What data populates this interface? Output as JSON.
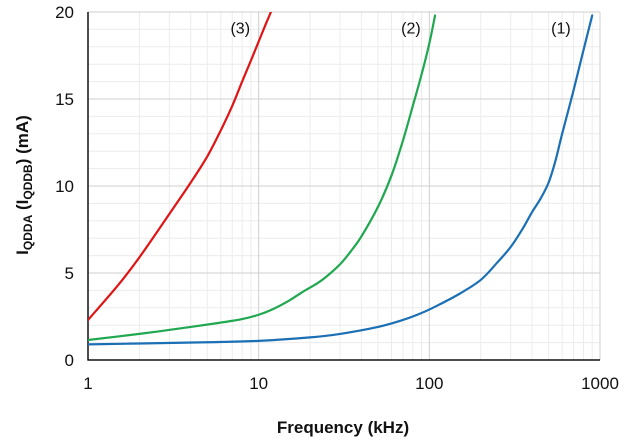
{
  "chart_data": {
    "type": "line",
    "xscale": "log",
    "xlim": [
      1,
      1000
    ],
    "ylim": [
      0,
      20
    ],
    "grid": true,
    "xlabel": "Frequency (kHz)",
    "ylabel": {
      "pre": "I",
      "sub1": "QDDA",
      "mid": " (I",
      "sub2": "QDDB",
      "post": ") (mA)"
    },
    "xticks": [
      {
        "value": 1,
        "label": "1"
      },
      {
        "value": 10,
        "label": "10"
      },
      {
        "value": 100,
        "label": "100"
      },
      {
        "value": 1000,
        "label": "1000"
      }
    ],
    "yticks": [
      {
        "value": 0,
        "label": "0"
      },
      {
        "value": 5,
        "label": "5"
      },
      {
        "value": 10,
        "label": "10"
      },
      {
        "value": 15,
        "label": "15"
      },
      {
        "value": 20,
        "label": "20"
      }
    ],
    "series": [
      {
        "label": "(1)",
        "color": "#1a6fb5",
        "label_pos": {
          "x": 590,
          "y": 18.3
        },
        "points": [
          [
            1,
            0.9
          ],
          [
            2,
            0.95
          ],
          [
            5,
            1.02
          ],
          [
            10,
            1.1
          ],
          [
            20,
            1.3
          ],
          [
            30,
            1.5
          ],
          [
            50,
            1.9
          ],
          [
            70,
            2.3
          ],
          [
            90,
            2.7
          ],
          [
            110,
            3.1
          ],
          [
            150,
            3.8
          ],
          [
            200,
            4.6
          ],
          [
            250,
            5.6
          ],
          [
            300,
            6.5
          ],
          [
            350,
            7.5
          ],
          [
            400,
            8.5
          ],
          [
            450,
            9.3
          ],
          [
            500,
            10.2
          ],
          [
            550,
            11.5
          ],
          [
            600,
            13.0
          ],
          [
            700,
            15.5
          ],
          [
            800,
            17.8
          ],
          [
            900,
            19.8
          ]
        ]
      },
      {
        "label": "(2)",
        "color": "#1fa84f",
        "label_pos": {
          "x": 78,
          "y": 18.3
        },
        "points": [
          [
            1,
            1.15
          ],
          [
            2,
            1.5
          ],
          [
            4,
            1.9
          ],
          [
            6,
            2.15
          ],
          [
            8,
            2.35
          ],
          [
            10,
            2.6
          ],
          [
            12,
            2.9
          ],
          [
            15,
            3.4
          ],
          [
            18,
            3.9
          ],
          [
            22,
            4.4
          ],
          [
            25,
            4.8
          ],
          [
            30,
            5.5
          ],
          [
            35,
            6.3
          ],
          [
            40,
            7.1
          ],
          [
            50,
            8.8
          ],
          [
            60,
            10.6
          ],
          [
            70,
            12.6
          ],
          [
            80,
            14.6
          ],
          [
            90,
            16.4
          ],
          [
            100,
            18.2
          ],
          [
            108,
            19.8
          ]
        ]
      },
      {
        "label": "(3)",
        "color": "#e01414",
        "label_pos": {
          "x": 7.8,
          "y": 18.3
        },
        "points": [
          [
            1,
            2.3
          ],
          [
            1.5,
            4.3
          ],
          [
            2,
            5.9
          ],
          [
            3,
            8.4
          ],
          [
            4,
            10.2
          ],
          [
            5,
            11.7
          ],
          [
            6,
            13.2
          ],
          [
            7,
            14.6
          ],
          [
            8,
            16.0
          ],
          [
            9,
            17.2
          ],
          [
            10,
            18.3
          ],
          [
            11,
            19.3
          ],
          [
            11.8,
            20.0
          ]
        ]
      }
    ]
  }
}
